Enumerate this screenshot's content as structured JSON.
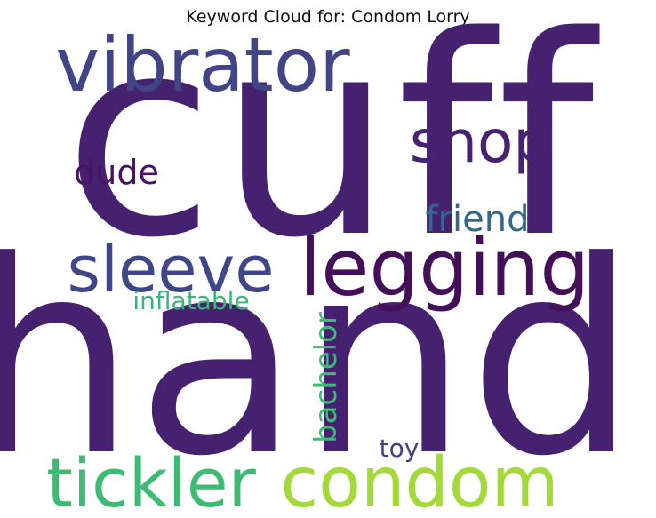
{
  "title": "Keyword Cloud for: Condom Lorry",
  "words": [
    {
      "text": "cuff",
      "color": "#46216f",
      "rotate": false
    },
    {
      "text": "hand",
      "color": "#46216f",
      "rotate": false
    },
    {
      "text": "vibrator",
      "color": "#414487",
      "rotate": false
    },
    {
      "text": "shop",
      "color": "#482173",
      "rotate": false
    },
    {
      "text": "dude",
      "color": "#471365",
      "rotate": false
    },
    {
      "text": "friend",
      "color": "#31688e",
      "rotate": false
    },
    {
      "text": "legging",
      "color": "#440f59",
      "rotate": false
    },
    {
      "text": "sleeve",
      "color": "#3f4788",
      "rotate": false
    },
    {
      "text": "inflatable",
      "color": "#3bb67a",
      "rotate": false
    },
    {
      "text": "bachelor",
      "color": "#3dbc74",
      "rotate": true
    },
    {
      "text": "toy",
      "color": "#433e85",
      "rotate": false
    },
    {
      "text": "tickler",
      "color": "#3dbb74",
      "rotate": false
    },
    {
      "text": "condom",
      "color": "#a4d93a",
      "rotate": false
    }
  ]
}
